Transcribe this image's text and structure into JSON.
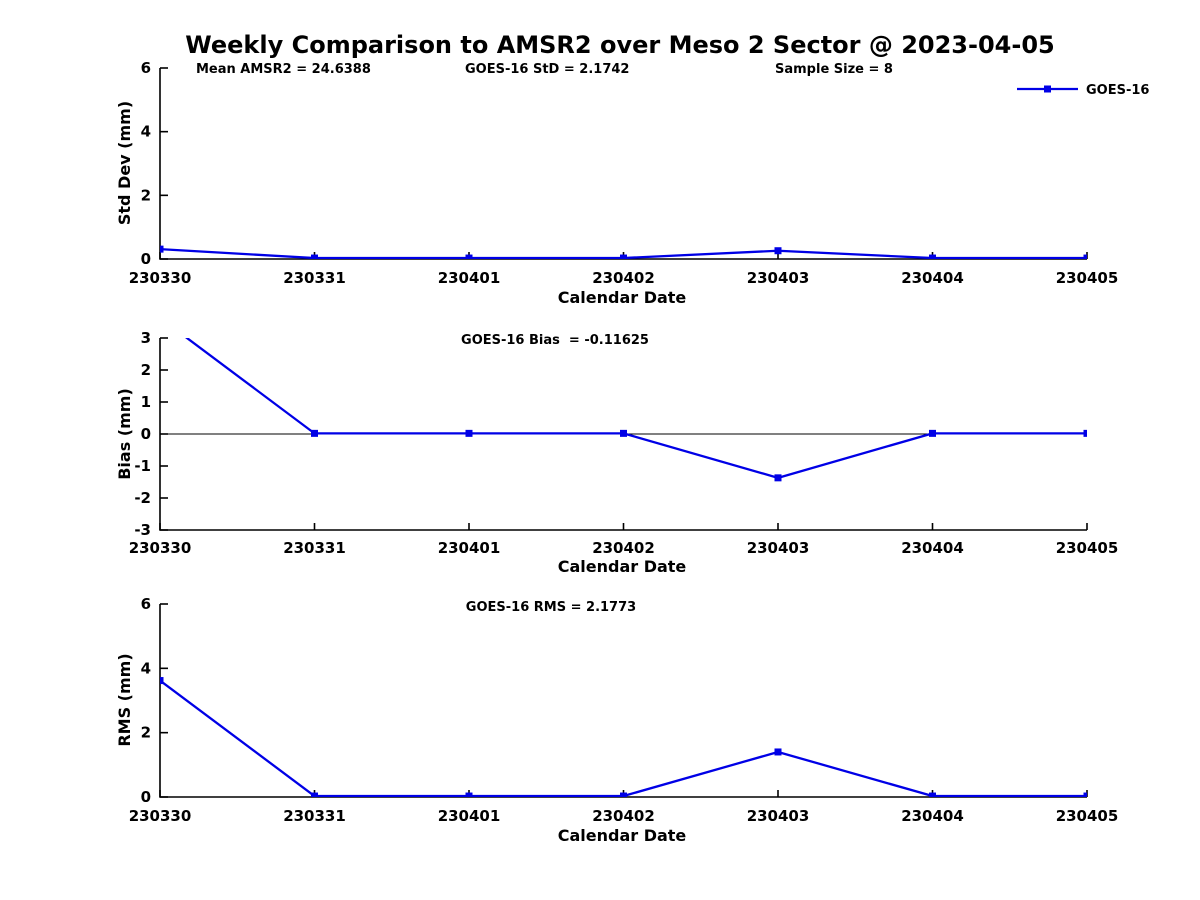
{
  "chart_data": {
    "type": "line",
    "title": "Weekly Comparison to AMSR2 over Meso 2 Sector @ 2023-04-05",
    "stats": [
      "Mean AMSR2 = 24.6388",
      "GOES-16 StD = 2.1742",
      "Sample Size = 8"
    ],
    "legend": {
      "label": "GOES-16",
      "color": "#0000e6",
      "marker": "filled-square",
      "position": "top-right"
    },
    "x_categories": [
      "230330",
      "230331",
      "230401",
      "230402",
      "230403",
      "230404",
      "230405"
    ],
    "xlabel": "Calendar Date",
    "grid": false,
    "background_color": "#ffffff",
    "text_color": "#000000",
    "subplots": [
      {
        "name": "std-dev",
        "subtitle": "",
        "ylabel": "Std Dev (mm)",
        "ylim": [
          0,
          6
        ],
        "yticks": [
          0,
          2,
          4,
          6
        ],
        "zero_line": false,
        "values": [
          0.31,
          0.03,
          0.03,
          0.03,
          0.26,
          0.03,
          0.03
        ]
      },
      {
        "name": "bias",
        "subtitle": "GOES-16 Bias  = -0.11625",
        "ylabel": "Bias (mm)",
        "ylim": [
          -3,
          3
        ],
        "yticks": [
          -3,
          -2,
          -1,
          0,
          1,
          2,
          3
        ],
        "zero_line": true,
        "values": [
          3.63,
          0.02,
          0.02,
          0.02,
          -1.37,
          0.02,
          0.02
        ]
      },
      {
        "name": "rms",
        "subtitle": "GOES-16 RMS = 2.1773",
        "ylabel": "RMS (mm)",
        "ylim": [
          0,
          6
        ],
        "yticks": [
          0,
          2,
          4,
          6
        ],
        "zero_line": false,
        "values": [
          3.62,
          0.03,
          0.03,
          0.03,
          1.4,
          0.03,
          0.03
        ]
      }
    ]
  }
}
